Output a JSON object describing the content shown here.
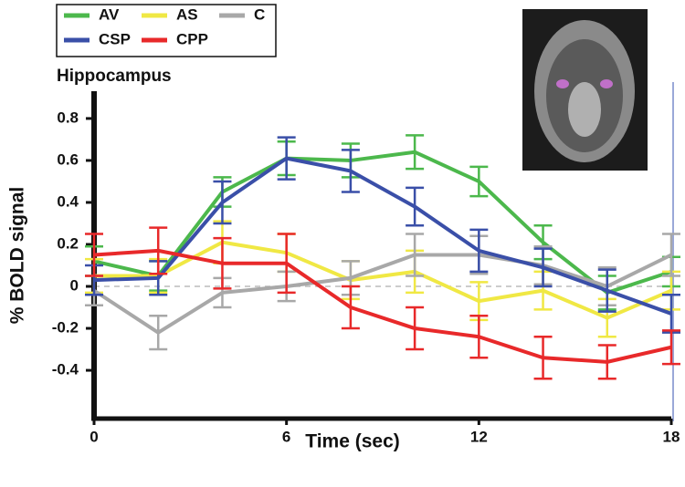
{
  "chart_data": {
    "type": "line",
    "title": "Hippocampus",
    "x_label": "Time (sec)",
    "y_label": "% BOLD signal",
    "x": [
      0,
      2,
      4,
      6,
      8,
      10,
      12,
      14,
      16,
      18
    ],
    "xlim": [
      0,
      18
    ],
    "xticks": [
      0,
      6,
      12,
      18
    ],
    "ylim": [
      -0.63,
      0.93
    ],
    "yticks": [
      -0.4,
      -0.2,
      0,
      0.2,
      0.4,
      0.6,
      0.8
    ],
    "series": [
      {
        "name": "AV",
        "color": "#4cb84c",
        "values": [
          0.12,
          0.05,
          0.45,
          0.61,
          0.6,
          0.64,
          0.5,
          0.21,
          -0.03,
          0.07
        ],
        "errors": [
          0.07,
          0.07,
          0.07,
          0.08,
          0.08,
          0.08,
          0.07,
          0.08,
          0.08,
          0.07
        ]
      },
      {
        "name": "AS",
        "color": "#f0e844",
        "values": [
          0.05,
          0.05,
          0.21,
          0.16,
          0.03,
          0.07,
          -0.07,
          -0.02,
          -0.15,
          -0.02
        ],
        "errors": [
          0.08,
          0.08,
          0.1,
          0.09,
          0.09,
          0.1,
          0.09,
          0.09,
          0.09,
          0.09
        ]
      },
      {
        "name": "C",
        "color": "#a8a8a8",
        "values": [
          -0.02,
          -0.22,
          -0.03,
          0.0,
          0.04,
          0.15,
          0.15,
          0.1,
          0.0,
          0.15
        ],
        "errors": [
          0.07,
          0.08,
          0.07,
          0.07,
          0.08,
          0.1,
          0.09,
          0.09,
          0.09,
          0.1
        ]
      },
      {
        "name": "CSP",
        "color": "#3a4fa8",
        "values": [
          0.03,
          0.04,
          0.4,
          0.61,
          0.55,
          0.38,
          0.17,
          0.09,
          -0.02,
          -0.13
        ],
        "errors": [
          0.07,
          0.08,
          0.1,
          0.1,
          0.1,
          0.09,
          0.1,
          0.09,
          0.1,
          0.09
        ]
      },
      {
        "name": "CPP",
        "color": "#e8292a",
        "values": [
          0.15,
          0.17,
          0.11,
          0.11,
          -0.1,
          -0.2,
          -0.24,
          -0.34,
          -0.36,
          -0.29
        ],
        "errors": [
          0.1,
          0.11,
          0.12,
          0.14,
          0.1,
          0.1,
          0.1,
          0.1,
          0.08,
          0.08
        ]
      }
    ],
    "grid": false
  }
}
